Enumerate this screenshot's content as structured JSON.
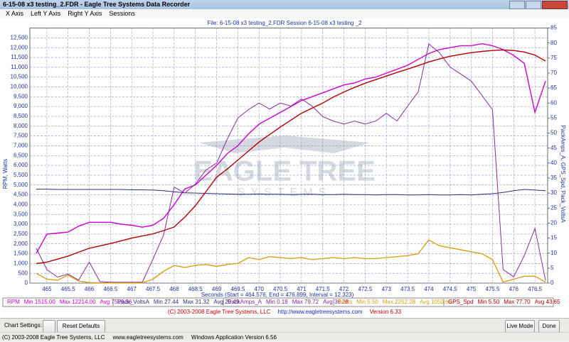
{
  "window": {
    "title": "6-15-08 x3 testing_2.FDR - Eagle Tree Systems Data Recorder",
    "menu": [
      "X Axis",
      "Left Y Axis",
      "Right Y Axis",
      "Sessions"
    ]
  },
  "chart_data": {
    "type": "line",
    "title": "File: 6-15-08 x3 testing_2.FDR   Session 6-15-08 x3 testing _2",
    "x_label": "Seconds (Start = 464.576, End = 476.899, Interval = 12.323)",
    "y_label": "RPM, Watts",
    "y2_label": "PackAmps_A, GPS_Spd, Pack_VoltsA",
    "watermark": [
      "EAGLE TREE",
      "SYSTEMS"
    ],
    "x": [
      464.75,
      465,
      465.25,
      465.5,
      465.75,
      466,
      466.25,
      466.5,
      466.75,
      467,
      467.25,
      467.5,
      467.75,
      468,
      468.25,
      468.5,
      468.75,
      469,
      469.25,
      469.5,
      469.75,
      470,
      470.25,
      470.5,
      470.75,
      471,
      471.25,
      471.5,
      471.75,
      472,
      472.25,
      472.5,
      472.75,
      473,
      473.25,
      473.5,
      473.75,
      474,
      474.25,
      474.5,
      474.75,
      475,
      475.25,
      475.5,
      475.75,
      476,
      476.25,
      476.5,
      476.75
    ],
    "xlim": [
      464.6,
      476.8
    ],
    "xticks": [
      465,
      465.5,
      466,
      466.5,
      467,
      467.5,
      468,
      468.5,
      469,
      469.5,
      470,
      470.5,
      471,
      471.5,
      472,
      472.5,
      473,
      473.5,
      474,
      474.5,
      475,
      475.5,
      476,
      476.5
    ],
    "ylim": [
      0,
      13000
    ],
    "yticks": [
      0,
      500,
      {
        "value": 1000,
        "label": "1,000"
      },
      {
        "value": 1500,
        "label": "1,500"
      },
      {
        "value": 2000,
        "label": "2,000"
      },
      {
        "value": 2500,
        "label": "2,500"
      },
      {
        "value": 3000,
        "label": "3,000"
      },
      {
        "value": 3500,
        "label": "3,500"
      },
      {
        "value": 4000,
        "label": "4,000"
      },
      {
        "value": 4500,
        "label": "4,500"
      },
      {
        "value": 5000,
        "label": "5,000"
      },
      {
        "value": 5500,
        "label": "5,500"
      },
      {
        "value": 6000,
        "label": "6,000"
      },
      {
        "value": 6500,
        "label": "6,500"
      },
      {
        "value": 7000,
        "label": "7,000"
      },
      {
        "value": 7500,
        "label": "7,500"
      },
      {
        "value": 8000,
        "label": "8,000"
      },
      {
        "value": 8500,
        "label": "8,500"
      },
      {
        "value": 9000,
        "label": "9,000"
      },
      {
        "value": 9500,
        "label": "9,500"
      },
      {
        "value": 10000,
        "label": "10,000"
      },
      {
        "value": 10500,
        "label": "10,500"
      },
      {
        "value": 11000,
        "label": "11,000"
      },
      {
        "value": 11500,
        "label": "11,500"
      },
      {
        "value": 12000,
        "label": "12,000"
      },
      {
        "value": 12500,
        "label": "12,500"
      }
    ],
    "y2lim": [
      0,
      85
    ],
    "y2ticks": [
      0,
      5,
      10,
      15,
      20,
      25,
      30,
      35,
      40,
      45,
      50,
      55,
      60,
      65,
      70,
      75,
      80,
      85
    ],
    "grid": true,
    "series": [
      {
        "name": "RPM",
        "color": "#cc00cc",
        "axis": "y",
        "stats": [
          "Min 1515.00",
          "Max 12214.00",
          "Avg 7559.86"
        ],
        "values": [
          1515,
          2500,
          2550,
          2600,
          2900,
          3100,
          3100,
          3100,
          3000,
          2950,
          2850,
          2950,
          3300,
          4000,
          4800,
          5000,
          5500,
          6000,
          6600,
          7000,
          7600,
          8100,
          8400,
          8700,
          9000,
          9300,
          9500,
          9700,
          9900,
          10100,
          10200,
          10400,
          10500,
          10700,
          10900,
          11100,
          11400,
          11700,
          11900,
          12000,
          12100,
          12100,
          12200,
          12100,
          11900,
          11600,
          11200,
          8700,
          10300
        ]
      },
      {
        "name": "Pack_VoltsA",
        "color": "#2b2f78",
        "axis": "y2",
        "stats": [
          "Min 27.44",
          "Max 31.32",
          "Avg 29.49"
        ],
        "values": [
          31.3,
          31.3,
          31.2,
          31.2,
          31.2,
          31.2,
          31.2,
          31.2,
          31.2,
          31.1,
          31.1,
          31.0,
          30.8,
          30.4,
          30.1,
          30.0,
          29.9,
          29.8,
          29.7,
          29.6,
          29.6,
          29.7,
          29.6,
          29.6,
          29.5,
          29.6,
          29.6,
          29.5,
          29.5,
          29.6,
          29.5,
          29.5,
          29.4,
          29.5,
          29.5,
          29.4,
          29.4,
          29.5,
          29.4,
          29.4,
          29.5,
          29.4,
          29.6,
          29.8,
          30.2,
          30.8,
          31.2,
          31.0,
          30.8
        ]
      },
      {
        "name": "PackAmps_A",
        "color": "#8a2a9a",
        "axis": "y2",
        "stats": [
          "Min 0.18",
          "Max 79.72",
          "Avg 36.28"
        ],
        "values": [
          11.6,
          4.5,
          2,
          3,
          1,
          7,
          0.5,
          0.3,
          0.3,
          0.3,
          0.3,
          8,
          16,
          32,
          30,
          33,
          37.7,
          40,
          48,
          55,
          57.8,
          60,
          58,
          60,
          59,
          61.4,
          59,
          55.5,
          54,
          53,
          54,
          53,
          54,
          56.6,
          54,
          59,
          63.7,
          79.7,
          76.8,
          72,
          69.7,
          67.3,
          62.6,
          57.8,
          4.5,
          2.1,
          9.2,
          18.2,
          0.9
        ]
      },
      {
        "name": "Watts",
        "color": "#d9a015",
        "axis": "y",
        "stats": [
          "Min 5.50",
          "Max 2252.28",
          "Avg 1050.66"
        ],
        "values": [
          500,
          200,
          150,
          400,
          100,
          30,
          10,
          10,
          10,
          10,
          10,
          200,
          600,
          900,
          800,
          900,
          950,
          850,
          950,
          1000,
          1300,
          1200,
          1350,
          1300,
          1250,
          1300,
          1200,
          1250,
          1300,
          1250,
          1300,
          1250,
          1250,
          1300,
          1350,
          1400,
          1500,
          2200,
          1900,
          1800,
          1700,
          1600,
          1500,
          1200,
          50,
          200,
          350,
          350,
          50
        ]
      },
      {
        "name": "GPS_Spd",
        "color": "#b00000",
        "axis": "y2",
        "stats": [
          "Min 5.50",
          "Max 77.70",
          "Avg 43.65"
        ],
        "values": [
          6.5,
          7,
          8,
          9,
          10.3,
          11.6,
          12.4,
          13.2,
          14.1,
          15,
          15.7,
          16.4,
          17.5,
          18.7,
          22,
          25.8,
          30.5,
          35.3,
          38,
          41,
          44,
          47,
          49.5,
          52,
          54.3,
          56.6,
          58.3,
          60,
          62,
          63.7,
          65.2,
          66.6,
          67.8,
          69,
          70.2,
          71.3,
          72.5,
          73.7,
          74.7,
          75.6,
          76.2,
          76.8,
          77.2,
          77.5,
          77.7,
          77.5,
          77,
          76,
          74
        ]
      }
    ]
  },
  "footer": {
    "copyright": "(C) 2003-2008 Eagle Tree Systems, LLC",
    "url": "http://www.eagletreesystems.com",
    "version": "Version 6.33"
  },
  "toolbar": {
    "chart_settings": "Chart Settings:",
    "reset": "Reset Defaults",
    "live": "Live Mode",
    "done": "Done"
  },
  "status_bar": "(C) 2003-2008 Eagle Tree Systems, LLC     www.eagletreesystems.com     Windows Application Version 6.56"
}
